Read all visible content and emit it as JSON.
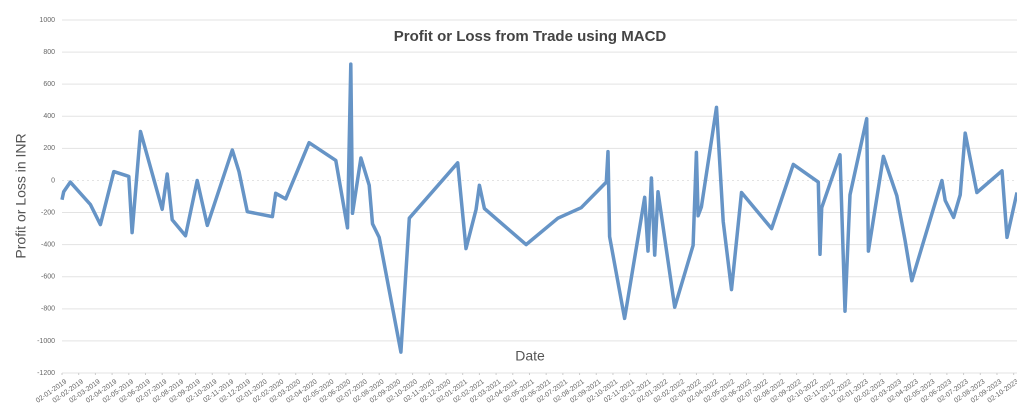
{
  "chart_data": {
    "type": "line",
    "title": "Profit or Loss from Trade using MACD",
    "xlabel": "Date",
    "ylabel": "Profit or Loss in INR",
    "ylim": [
      -1200,
      1000
    ],
    "yticks": [
      -1200,
      -1000,
      -800,
      -600,
      -400,
      -200,
      0,
      200,
      400,
      600,
      800,
      1000
    ],
    "xlim": [
      0,
      57.2
    ],
    "xticks": [
      {
        "value": 0,
        "label": "02-01-2019"
      },
      {
        "value": 1,
        "label": "02-02-2019"
      },
      {
        "value": 2,
        "label": "02-03-2019"
      },
      {
        "value": 3,
        "label": "02-04-2019"
      },
      {
        "value": 4,
        "label": "02-05-2019"
      },
      {
        "value": 5,
        "label": "02-06-2019"
      },
      {
        "value": 6,
        "label": "02-07-2019"
      },
      {
        "value": 7,
        "label": "02-08-2019"
      },
      {
        "value": 8,
        "label": "02-09-2019"
      },
      {
        "value": 9,
        "label": "02-10-2019"
      },
      {
        "value": 10,
        "label": "02-11-2019"
      },
      {
        "value": 11,
        "label": "02-12-2019"
      },
      {
        "value": 12,
        "label": "02-01-2020"
      },
      {
        "value": 13,
        "label": "02-02-2020"
      },
      {
        "value": 14,
        "label": "02-03-2020"
      },
      {
        "value": 15,
        "label": "02-04-2020"
      },
      {
        "value": 16,
        "label": "02-05-2020"
      },
      {
        "value": 17,
        "label": "02-06-2020"
      },
      {
        "value": 18,
        "label": "02-07-2020"
      },
      {
        "value": 19,
        "label": "02-08-2020"
      },
      {
        "value": 20,
        "label": "02-09-2020"
      },
      {
        "value": 21,
        "label": "02-10-2020"
      },
      {
        "value": 22,
        "label": "02-11-2020"
      },
      {
        "value": 23,
        "label": "02-12-2020"
      },
      {
        "value": 24,
        "label": "02-01-2021"
      },
      {
        "value": 25,
        "label": "02-02-2021"
      },
      {
        "value": 26,
        "label": "02-03-2021"
      },
      {
        "value": 27,
        "label": "02-04-2021"
      },
      {
        "value": 28,
        "label": "02-05-2021"
      },
      {
        "value": 29,
        "label": "02-06-2021"
      },
      {
        "value": 30,
        "label": "02-07-2021"
      },
      {
        "value": 31,
        "label": "02-08-2021"
      },
      {
        "value": 32,
        "label": "02-09-2021"
      },
      {
        "value": 33,
        "label": "02-10-2021"
      },
      {
        "value": 34,
        "label": "02-11-2021"
      },
      {
        "value": 35,
        "label": "02-12-2021"
      },
      {
        "value": 36,
        "label": "02-01-2022"
      },
      {
        "value": 37,
        "label": "02-02-2022"
      },
      {
        "value": 38,
        "label": "02-03-2022"
      },
      {
        "value": 39,
        "label": "02-04-2022"
      },
      {
        "value": 40,
        "label": "02-05-2022"
      },
      {
        "value": 41,
        "label": "02-06-2022"
      },
      {
        "value": 42,
        "label": "02-07-2022"
      },
      {
        "value": 43,
        "label": "02-08-2022"
      },
      {
        "value": 44,
        "label": "02-09-2022"
      },
      {
        "value": 45,
        "label": "02-10-2022"
      },
      {
        "value": 46,
        "label": "02-11-2022"
      },
      {
        "value": 47,
        "label": "02-12-2022"
      },
      {
        "value": 48,
        "label": "02-01-2023"
      },
      {
        "value": 49,
        "label": "02-02-2023"
      },
      {
        "value": 50,
        "label": "02-03-2023"
      },
      {
        "value": 51,
        "label": "02-04-2023"
      },
      {
        "value": 52,
        "label": "02-05-2023"
      },
      {
        "value": 53,
        "label": "02-06-2023"
      },
      {
        "value": 54,
        "label": "02-07-2023"
      },
      {
        "value": 55,
        "label": "02-08-2023"
      },
      {
        "value": 56,
        "label": "02-09-2023"
      },
      {
        "value": 57,
        "label": "02-10-2023"
      }
    ],
    "grid": true,
    "series": [
      {
        "name": "Profit or Loss",
        "color": "#6694c6",
        "x": [
          0,
          0.1,
          0.5,
          1.7,
          2.3,
          3.1,
          4.0,
          4.2,
          4.7,
          6.0,
          6.3,
          6.6,
          7.4,
          8.1,
          8.7,
          10.2,
          10.6,
          11.1,
          12.6,
          12.8,
          13.4,
          14.8,
          16.4,
          17.1,
          17.3,
          17.4,
          17.9,
          18.4,
          18.6,
          19.0,
          20.3,
          20.8,
          23.7,
          24.2,
          24.8,
          25.0,
          25.3,
          27.8,
          29.7,
          31.1,
          32.6,
          32.7,
          32.8,
          33.7,
          34.9,
          35.1,
          35.3,
          35.5,
          35.7,
          36.7,
          37.8,
          38.0,
          38.1,
          38.3,
          39.2,
          39.6,
          40.1,
          40.7,
          42.5,
          43.8,
          45.3,
          45.4,
          45.5,
          46.6,
          46.9,
          47.2,
          48.2,
          48.3,
          49.2,
          50.0,
          50.5,
          50.9,
          52.7,
          52.9,
          53.4,
          53.8,
          54.1,
          54.8,
          56.3,
          56.6,
          57.2
        ],
        "values": [
          -120,
          -70,
          -10,
          -150,
          -275,
          55,
          25,
          -325,
          305,
          -180,
          40,
          -245,
          -345,
          0,
          -280,
          190,
          55,
          -195,
          -225,
          -80,
          -115,
          235,
          125,
          -295,
          725,
          -205,
          140,
          -30,
          -270,
          -355,
          -1070,
          -235,
          110,
          -425,
          -180,
          -30,
          -175,
          -400,
          -235,
          -170,
          -10,
          180,
          -350,
          -860,
          -105,
          -440,
          15,
          -465,
          -70,
          -790,
          -405,
          175,
          -220,
          -165,
          455,
          -255,
          -680,
          -75,
          -300,
          100,
          -10,
          -460,
          -170,
          160,
          -815,
          -90,
          385,
          -440,
          150,
          -95,
          -375,
          -625,
          0,
          -125,
          -230,
          -90,
          295,
          -75,
          60,
          -355,
          -75
        ]
      }
    ]
  }
}
